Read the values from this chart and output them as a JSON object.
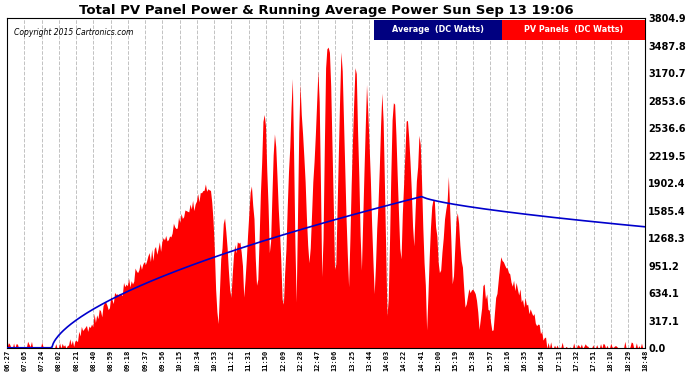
{
  "title": "Total PV Panel Power & Running Average Power Sun Sep 13 19:06",
  "copyright": "Copyright 2015 Cartronics.com",
  "ymax": 3804.9,
  "ymin": 0.0,
  "yticks": [
    0.0,
    317.1,
    634.1,
    951.2,
    1268.3,
    1585.4,
    1902.4,
    2219.5,
    2536.6,
    2853.6,
    3170.7,
    3487.8,
    3804.9
  ],
  "ytick_labels": [
    "0.0",
    "317.1",
    "634.1",
    "951.2",
    "1268.3",
    "1585.4",
    "1902.4",
    "2219.5",
    "2536.6",
    "2853.6",
    "3170.7",
    "3487.8",
    "3804.9"
  ],
  "bg_color": "#ffffff",
  "plot_bg_color": "#ffffff",
  "grid_color": "#bbbbbb",
  "pv_color": "#ff0000",
  "avg_color": "#0000cc",
  "title_color": "#000000",
  "legend_avg_bg": "#000080",
  "legend_pv_bg": "#ff0000",
  "legend_avg_text": "Average  (DC Watts)",
  "legend_pv_text": "PV Panels  (DC Watts)",
  "x_labels": [
    "06:27",
    "07:05",
    "07:24",
    "08:02",
    "08:21",
    "08:40",
    "08:59",
    "09:18",
    "09:37",
    "09:56",
    "10:15",
    "10:34",
    "10:53",
    "11:12",
    "11:31",
    "11:50",
    "12:09",
    "12:28",
    "12:47",
    "13:06",
    "13:25",
    "13:44",
    "14:03",
    "14:22",
    "14:41",
    "15:00",
    "15:19",
    "15:38",
    "15:57",
    "16:16",
    "16:35",
    "16:54",
    "17:13",
    "17:32",
    "17:51",
    "18:10",
    "18:29",
    "18:48"
  ]
}
